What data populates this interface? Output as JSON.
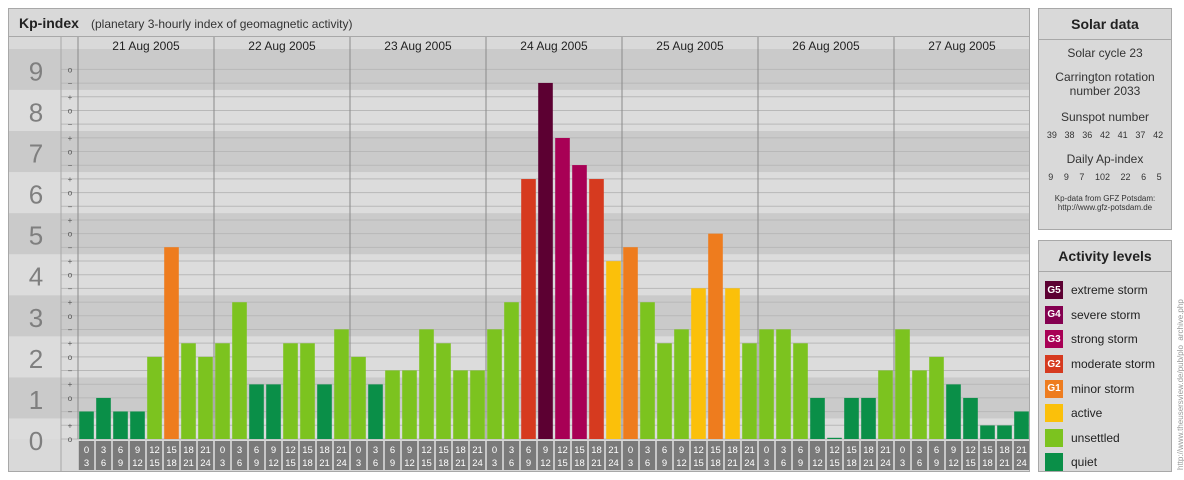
{
  "header": {
    "title": "Kp-index",
    "subtitle": "(planetary 3-hourly index of geomagnetic activity)"
  },
  "chart_data": {
    "type": "bar",
    "title": "Kp-index",
    "subtitle": "(planetary 3-hourly index of geomagnetic activity)",
    "ylim": [
      0,
      9
    ],
    "y_ticks": [
      "0",
      "1",
      "2",
      "3",
      "4",
      "5",
      "6",
      "7",
      "8",
      "9"
    ],
    "minor_tick_labels": [
      "o",
      "+",
      "−"
    ],
    "days": [
      "21 Aug 2005",
      "22 Aug 2005",
      "23 Aug 2005",
      "24 Aug 2005",
      "25 Aug 2005",
      "26 Aug 2005",
      "27 Aug 2005"
    ],
    "interval_labels": [
      [
        "0",
        "3"
      ],
      [
        "3",
        "6"
      ],
      [
        "6",
        "9"
      ],
      [
        "9",
        "12"
      ],
      [
        "12",
        "15"
      ],
      [
        "15",
        "18"
      ],
      [
        "18",
        "21"
      ],
      [
        "21",
        "24"
      ]
    ],
    "values": [
      [
        0.67,
        1.0,
        0.67,
        0.67,
        2.0,
        4.67,
        2.33,
        2.0
      ],
      [
        2.33,
        3.33,
        1.33,
        1.33,
        2.33,
        2.33,
        1.33,
        2.67
      ],
      [
        2.0,
        1.33,
        1.67,
        1.67,
        2.67,
        2.33,
        1.67,
        1.67
      ],
      [
        2.67,
        3.33,
        6.33,
        8.67,
        7.33,
        6.67,
        6.33,
        4.33
      ],
      [
        4.67,
        3.33,
        2.33,
        2.67,
        3.67,
        5.0,
        3.67,
        2.33
      ],
      [
        2.67,
        2.67,
        2.33,
        1.0,
        0.0,
        1.0,
        1.0,
        1.67
      ],
      [
        2.67,
        1.67,
        2.0,
        1.33,
        1.0,
        0.33,
        0.33,
        0.67
      ]
    ],
    "grid": true
  },
  "solar": {
    "title": "Solar data",
    "cycle": "Solar cycle 23",
    "carrington_1": "Carrington rotation",
    "carrington_2": "number 2033",
    "sunspot_label": "Sunspot number",
    "sunspot_values": [
      "39",
      "38",
      "36",
      "42",
      "41",
      "37",
      "42"
    ],
    "ap_label": "Daily Ap-index",
    "ap_values": [
      "9",
      "9",
      "7",
      "102",
      "22",
      "6",
      "5"
    ],
    "source_1": "Kp-data from GFZ Potsdam:",
    "source_2": "http://www.gfz-potsdam.de"
  },
  "activity": {
    "title": "Activity levels",
    "items": [
      {
        "code": "G5",
        "label": "extreme storm",
        "color": "#5c0032"
      },
      {
        "code": "G4",
        "label": "severe storm",
        "color": "#840050"
      },
      {
        "code": "G3",
        "label": "strong storm",
        "color": "#a80055"
      },
      {
        "code": "G2",
        "label": "moderate storm",
        "color": "#d63a1f"
      },
      {
        "code": "G1",
        "label": "minor storm",
        "color": "#ee7c1e"
      },
      {
        "code": "",
        "label": "active",
        "color": "#fbc00a"
      },
      {
        "code": "",
        "label": "unsettled",
        "color": "#7cc31f"
      },
      {
        "code": "",
        "label": "quiet",
        "color": "#0a8f48"
      }
    ]
  },
  "watermark": "http://www.theusersview.de/pub/plo_archive.php"
}
